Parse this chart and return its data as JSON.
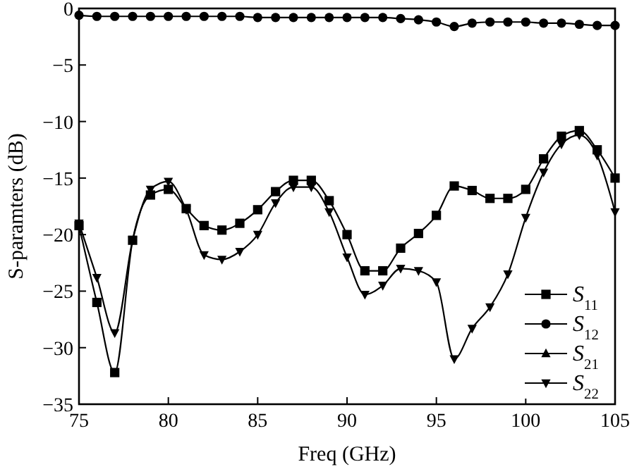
{
  "chart_data": {
    "type": "line",
    "xlabel": "Freq (GHz)",
    "ylabel": "S-paramters (dB)",
    "x": [
      75,
      76,
      77,
      78,
      79,
      80,
      81,
      82,
      83,
      84,
      85,
      86,
      87,
      88,
      89,
      90,
      91,
      92,
      93,
      94,
      95,
      96,
      97,
      98,
      99,
      100,
      101,
      102,
      103,
      104,
      105
    ],
    "xlim": [
      75,
      105
    ],
    "xticks": [
      75,
      80,
      85,
      90,
      95,
      100,
      105
    ],
    "ylim": [
      -35,
      0
    ],
    "yticks": [
      -35,
      -30,
      -25,
      -20,
      -15,
      -10,
      -5,
      0
    ],
    "legend": "bottom right",
    "grid": false,
    "line_style": "solid",
    "series": [
      {
        "name": "S$_{11}$",
        "color": "#000000",
        "marker": "square",
        "values": [
          -19.2,
          -26,
          -32.2,
          -20.5,
          -16.5,
          -16,
          -17.7,
          -19.2,
          -19.6,
          -19,
          -17.8,
          -16.2,
          -15.2,
          -15.2,
          -17,
          -20,
          -23.2,
          -23.2,
          -21.2,
          -19.9,
          -18.3,
          -15.7,
          -16.1,
          -16.8,
          -16.8,
          -16,
          -13.3,
          -11.3,
          -10.8,
          -12.5,
          -15
        ]
      },
      {
        "name": "S$_{12}$",
        "color": "#000000",
        "marker": "circle",
        "values": [
          -0.6,
          -0.7,
          -0.7,
          -0.7,
          -0.7,
          -0.7,
          -0.7,
          -0.7,
          -0.7,
          -0.7,
          -0.8,
          -0.8,
          -0.8,
          -0.8,
          -0.8,
          -0.8,
          -0.8,
          -0.8,
          -0.9,
          -1.0,
          -1.2,
          -1.6,
          -1.3,
          -1.2,
          -1.2,
          -1.2,
          -1.3,
          -1.3,
          -1.4,
          -1.5,
          -1.5
        ]
      },
      {
        "name": "S$_{21}$",
        "color": "#000000",
        "marker": "triangle",
        "values": [
          null,
          null,
          null,
          null,
          null,
          null,
          null,
          null,
          null,
          null,
          null,
          null,
          null,
          null,
          null,
          null,
          null,
          null,
          null,
          null,
          null,
          null,
          null,
          null,
          null,
          null,
          null,
          null,
          null,
          null,
          null
        ]
      },
      {
        "name": "S$_{22}$",
        "color": "#000000",
        "marker": "triangle-down",
        "values": [
          -19,
          -23.8,
          -28.7,
          -20.5,
          -16,
          -15.3,
          -17.8,
          -21.8,
          -22.2,
          -21.5,
          -20,
          -17.2,
          -15.8,
          -15.8,
          -18,
          -22,
          -25.3,
          -24.5,
          -23,
          -23.2,
          -24.2,
          -31,
          -28.3,
          -26.4,
          -23.5,
          -18.5,
          -14.5,
          -12,
          -11.2,
          -13,
          -18
        ]
      }
    ]
  }
}
